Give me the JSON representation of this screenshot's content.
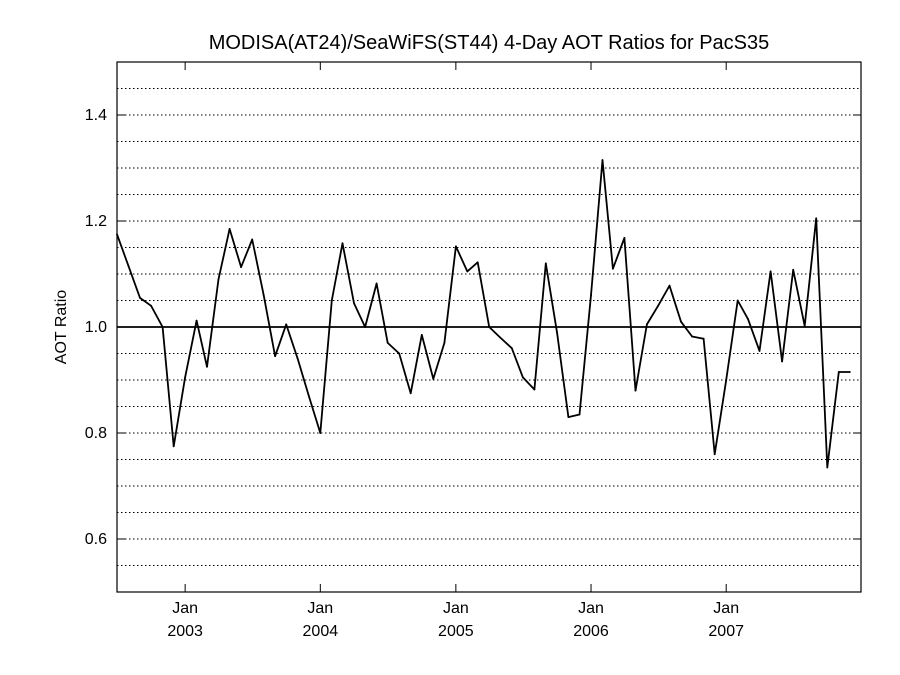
{
  "chart_data": {
    "type": "line",
    "title": "MODISA(AT24)/SeaWiFS(ST44) 4-Day AOT Ratios for PacS35",
    "xlabel": "",
    "ylabel": "AOT Ratio",
    "ylim": [
      0.5,
      1.5
    ],
    "xlim": [
      "2002-07-01",
      "2007-12-31"
    ],
    "y_ticks": [
      "0.6",
      "0.8",
      "1.0",
      "1.2",
      "1.4"
    ],
    "y_tick_values": [
      0.6,
      0.8,
      1.0,
      1.2,
      1.4
    ],
    "x_ticks": [
      {
        "date": "2003-01-01",
        "month": "Jan",
        "year": "2003"
      },
      {
        "date": "2004-01-01",
        "month": "Jan",
        "year": "2004"
      },
      {
        "date": "2005-01-01",
        "month": "Jan",
        "year": "2005"
      },
      {
        "date": "2006-01-01",
        "month": "Jan",
        "year": "2006"
      },
      {
        "date": "2007-01-01",
        "month": "Jan",
        "year": "2007"
      }
    ],
    "grid": "horizontal dotted every 0.05",
    "reference_line": 1.0,
    "series": [
      {
        "x": [
          "2002-07-01",
          "2002-08-01",
          "2002-09-01",
          "2002-10-01",
          "2002-11-01",
          "2002-12-01",
          "2003-01-01",
          "2003-02-01",
          "2003-03-01",
          "2003-04-01",
          "2003-05-01",
          "2003-06-01",
          "2003-07-01",
          "2003-08-01",
          "2003-09-01",
          "2003-10-01",
          "2003-11-01",
          "2003-12-01",
          "2004-01-01",
          "2004-02-01",
          "2004-03-01",
          "2004-04-01",
          "2004-05-01",
          "2004-06-01",
          "2004-07-01",
          "2004-08-01",
          "2004-09-01",
          "2004-10-01",
          "2004-11-01",
          "2004-12-01",
          "2005-01-01",
          "2005-02-01",
          "2005-03-01",
          "2005-04-01",
          "2005-05-01",
          "2005-06-01",
          "2005-07-01",
          "2005-08-01",
          "2005-09-01",
          "2005-10-01",
          "2005-11-01",
          "2005-12-01",
          "2006-01-01",
          "2006-02-01",
          "2006-03-01",
          "2006-04-01",
          "2006-05-01",
          "2006-06-01",
          "2006-07-01",
          "2006-08-01",
          "2006-09-01",
          "2006-10-01",
          "2006-11-01",
          "2006-12-01",
          "2007-01-01",
          "2007-02-01",
          "2007-03-01",
          "2007-04-01",
          "2007-05-01",
          "2007-06-01",
          "2007-07-01",
          "2007-08-01",
          "2007-09-01",
          "2007-10-01",
          "2007-11-01",
          "2007-12-01"
        ],
        "values": [
          1.175,
          1.115,
          1.055,
          1.04,
          1.0,
          0.775,
          0.905,
          1.012,
          0.925,
          1.09,
          1.185,
          1.113,
          1.165,
          1.06,
          0.945,
          1.005,
          0.94,
          0.87,
          0.8,
          1.05,
          1.158,
          1.045,
          1.0,
          1.082,
          0.97,
          0.95,
          0.875,
          0.985,
          0.902,
          0.97,
          1.152,
          1.105,
          1.122,
          1.0,
          0.98,
          0.96,
          0.905,
          0.882,
          1.12,
          0.99,
          0.83,
          0.835,
          1.06,
          1.315,
          1.11,
          1.168,
          0.88,
          1.005,
          1.04,
          1.078,
          1.01,
          0.982,
          0.978,
          0.76,
          0.9,
          1.05,
          1.015,
          0.955,
          1.105,
          0.935,
          1.108,
          1.002,
          1.205,
          0.735,
          0.915,
          0.915
        ]
      }
    ],
    "colors": {
      "line": "#000000",
      "grid": "#000000",
      "background": "#ffffff"
    }
  }
}
